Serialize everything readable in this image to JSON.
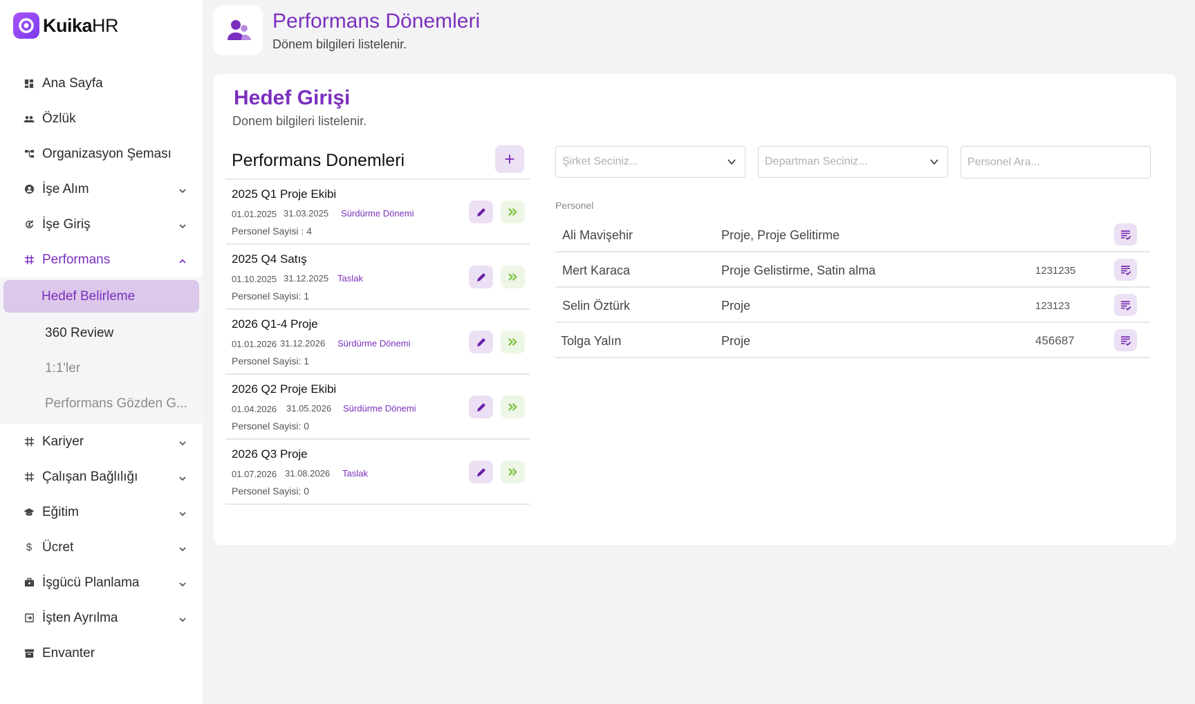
{
  "app": {
    "logo_bold": "Kuika",
    "logo_light": "HR"
  },
  "sidebar": {
    "items": [
      {
        "label": "Ana Sayfa",
        "icon": "dashboard-icon"
      },
      {
        "label": "Özlük",
        "icon": "people-icon"
      },
      {
        "label": "Organizasyon Şeması",
        "icon": "org-chart-icon"
      },
      {
        "label": "İşe Alım",
        "icon": "person-badge-icon"
      },
      {
        "label": "İşe Giriş",
        "icon": "refresh-person-icon"
      },
      {
        "label": "Performans",
        "icon": "hash-icon"
      },
      {
        "label": "Kariyer",
        "icon": "hash-icon"
      },
      {
        "label": "Çalışan Bağlılığı",
        "icon": "hash-icon"
      },
      {
        "label": "Eğitim",
        "icon": "graduation-cap-icon"
      },
      {
        "label": "Ücret",
        "icon": "dollar-icon"
      },
      {
        "label": "İşgücü Planlama",
        "icon": "briefcase-icon"
      },
      {
        "label": "İşten Ayrılma",
        "icon": "exit-icon"
      },
      {
        "label": "Envanter",
        "icon": "archive-icon"
      }
    ],
    "performans_sub": [
      {
        "label": "Hedef Belirleme"
      },
      {
        "label": "360 Review"
      },
      {
        "label": "1:1'ler"
      },
      {
        "label": "Performans Gözden G..."
      }
    ]
  },
  "header": {
    "title": "Performans Dönemleri",
    "subtitle": "Dönem bilgileri listelenir."
  },
  "card": {
    "title": "Hedef Girişi",
    "subtitle": "Donem bilgileri listelenir.",
    "list_title": "Performans Donemleri",
    "add_label": "+"
  },
  "periods": [
    {
      "name": "2025 Q1 Proje Ekibi",
      "start": "01.01.2025",
      "end": "31.03.2025",
      "status": "Sürdürme Dönemi",
      "count": "Personel Sayisi : 4"
    },
    {
      "name": "2025 Q4 Satış",
      "start": "01.10.2025",
      "end": "31.12.2025",
      "status": "Taslak",
      "count": "Personel Sayisi: 1"
    },
    {
      "name": "2026 Q1-4 Proje",
      "start": "01.01.2026",
      "end": "31.12.2026",
      "status": "Sürdürme Dönemi",
      "count": "Personel Sayisi: 1"
    },
    {
      "name": "2026 Q2 Proje Ekibi",
      "start": "01.04.2026",
      "end": "31.05.2026",
      "status": "Sürdürme Dönemi",
      "count": "Personel Sayisi: 0"
    },
    {
      "name": "2026 Q3 Proje",
      "start": "01.07.2026",
      "end": "31.08.2026",
      "status": "Taslak",
      "count": "Personel Sayisi: 0"
    }
  ],
  "filters": {
    "company_placeholder": "Şirket Seciniz...",
    "department_placeholder": "Departman Seciniz...",
    "search_placeholder": "Personel Ara..."
  },
  "personel": {
    "label": "Personel",
    "rows": [
      {
        "name": "Ali Mavişehir",
        "dept": "Proje, Proje Gelitirme",
        "code": ""
      },
      {
        "name": "Mert Karaca",
        "dept": "Proje Gelistirme, Satin alma",
        "code": "1231235"
      },
      {
        "name": "Selin Öztürk",
        "dept": "Proje",
        "code": "123123"
      },
      {
        "name": "Tolga Yalın",
        "dept": "Proje",
        "code": "456687"
      }
    ]
  },
  "colors": {
    "accent": "#7b2fbe",
    "accent_light": "#ece0f5",
    "go_green": "#7cc242"
  }
}
